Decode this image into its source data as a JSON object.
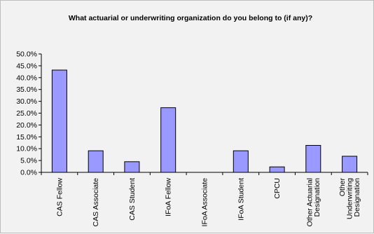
{
  "chart_data": {
    "type": "bar",
    "title": "What actuarial or underwriting organization do you belong to (if any)?",
    "xlabel": "",
    "ylabel": "",
    "ylim": [
      0,
      50
    ],
    "ytick_step": 5,
    "ytick_labels": [
      "0.0%",
      "5.0%",
      "10.0%",
      "15.0%",
      "20.0%",
      "25.0%",
      "30.0%",
      "35.0%",
      "40.0%",
      "45.0%",
      "50.0%"
    ],
    "grid": false,
    "legend": "none",
    "categories": [
      [
        "CAS Fellow"
      ],
      [
        "CAS Associate"
      ],
      [
        "CAS Student"
      ],
      [
        "IFoA Fellow"
      ],
      [
        "IFoA Associate"
      ],
      [
        "IFoA Student"
      ],
      [
        "CPCU"
      ],
      [
        "Other Actuarial",
        "Designation"
      ],
      [
        "Other",
        "Underwriting",
        "Designation"
      ]
    ],
    "values": [
      43.2,
      9.1,
      4.5,
      27.3,
      0.0,
      9.1,
      2.3,
      11.4,
      6.8
    ],
    "colors": {
      "bar_fill": "#9999ff",
      "bar_stroke": "#000000",
      "background": "#f2f2f2",
      "axis": "#000000"
    }
  }
}
